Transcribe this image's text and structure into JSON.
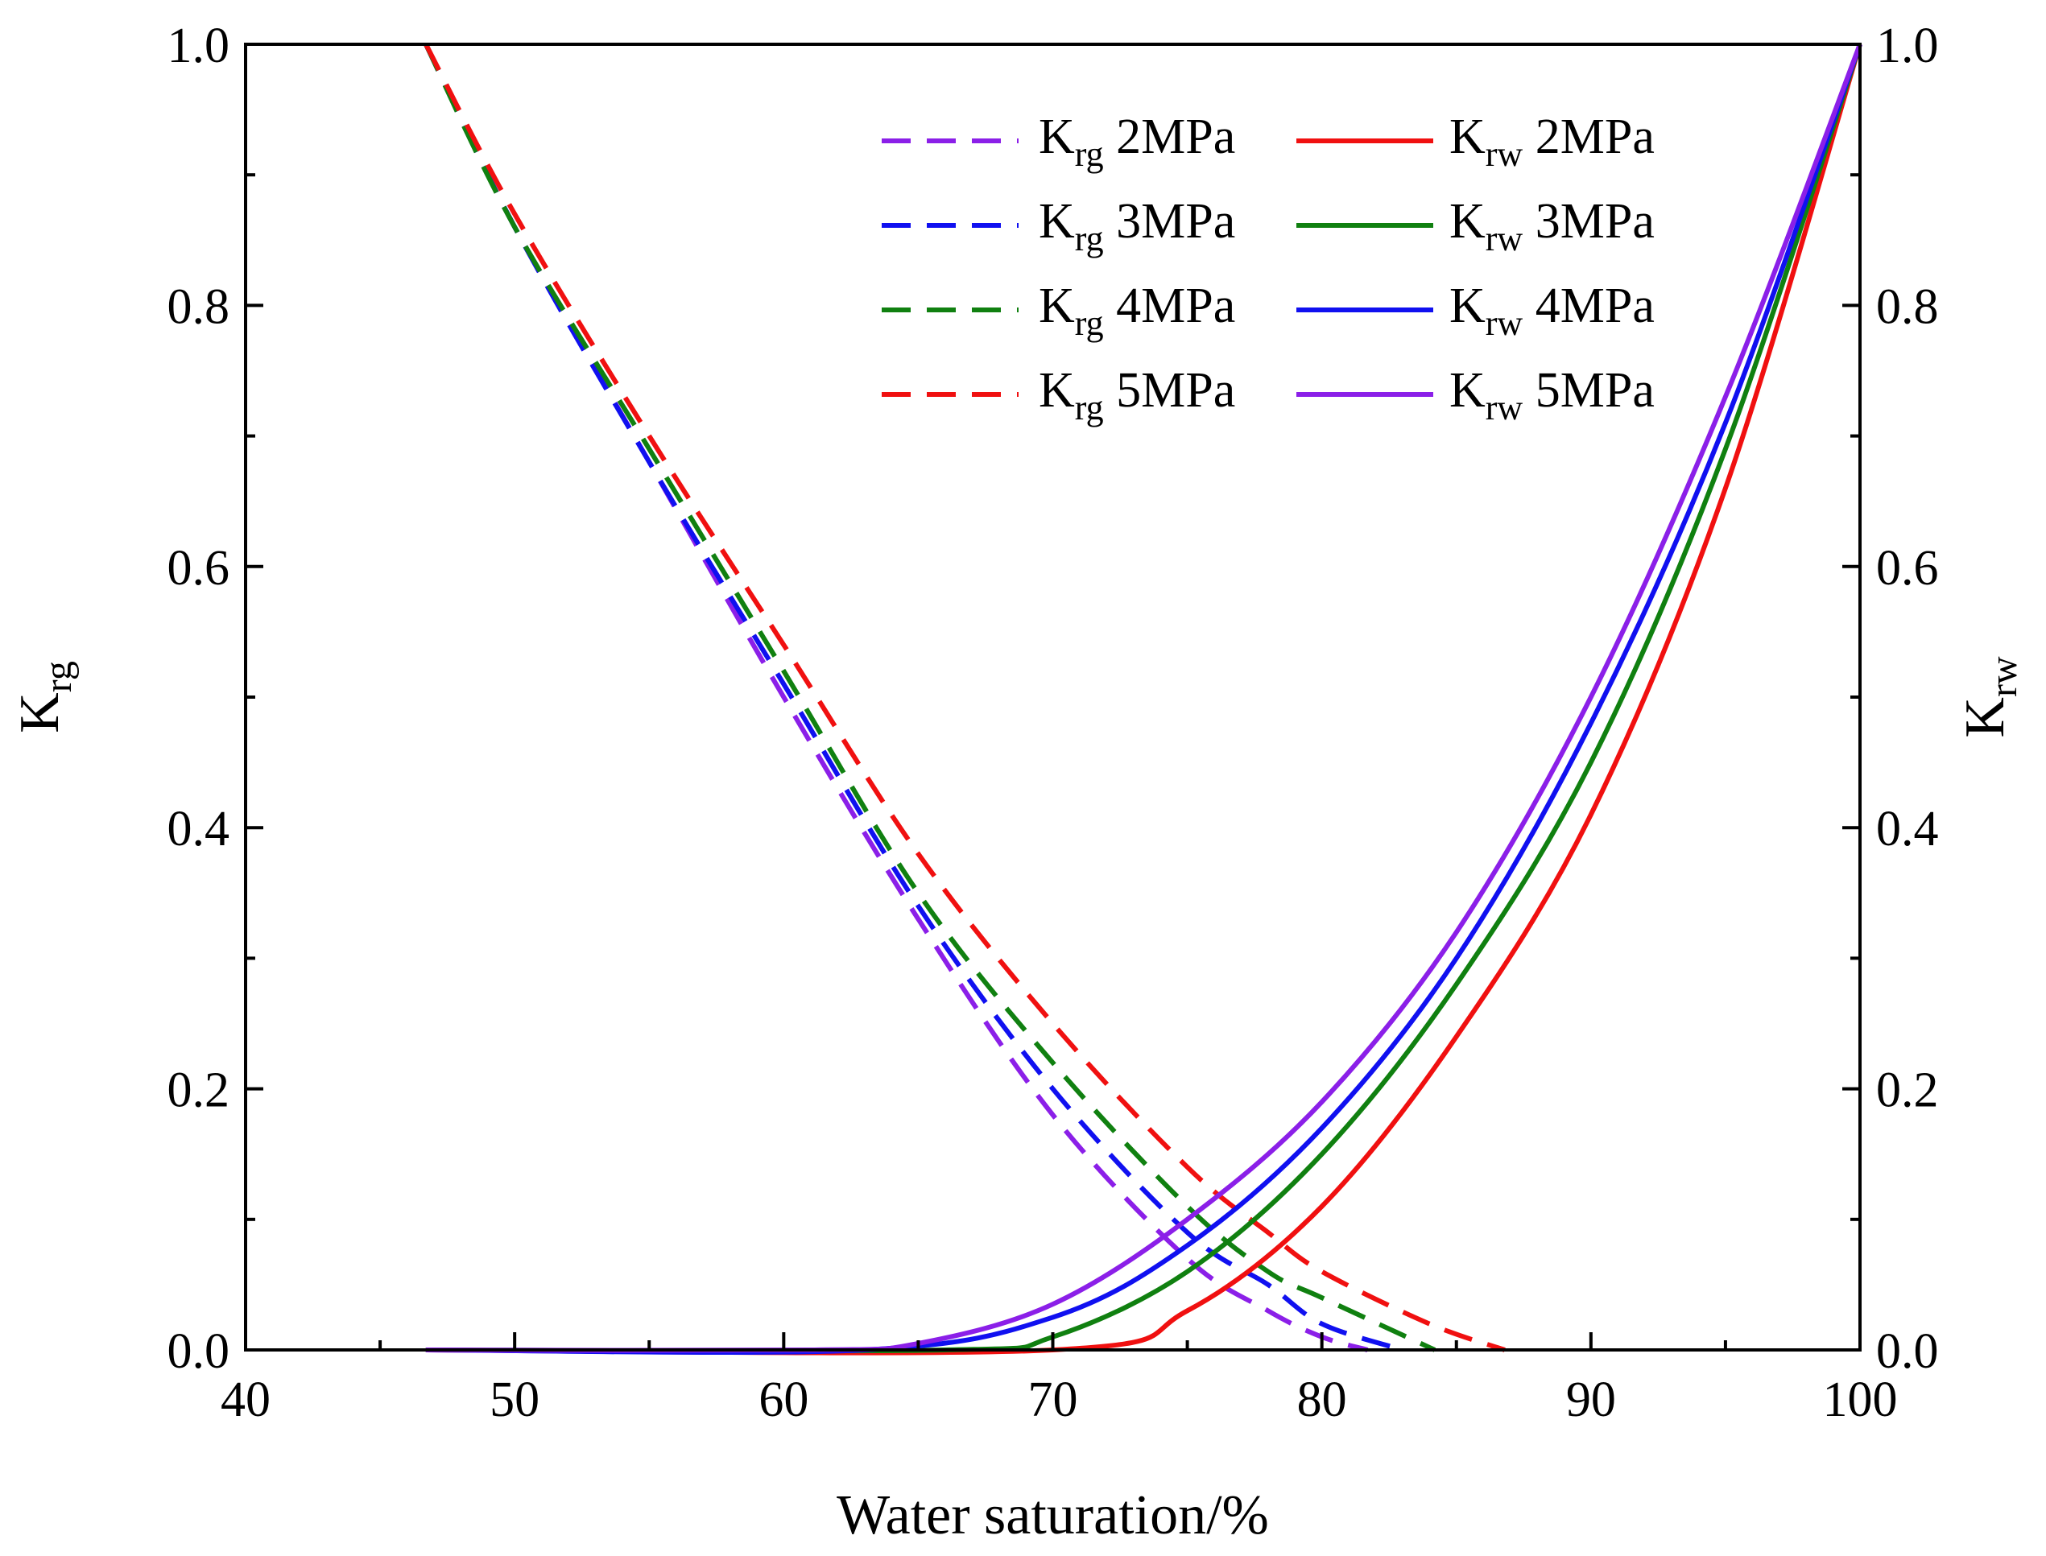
{
  "chart_data": {
    "type": "line",
    "xlabel": "Water saturation/%",
    "ylabel_left": {
      "main": "K",
      "sub": "rg"
    },
    "ylabel_right": {
      "main": "K",
      "sub": "rw"
    },
    "xlim": [
      40,
      100
    ],
    "ylim_left": [
      0.0,
      1.0
    ],
    "ylim_right": [
      0.0,
      1.0
    ],
    "x_ticks": [
      "40",
      "50",
      "60",
      "70",
      "80",
      "90",
      "100"
    ],
    "y_ticks_left": [
      "0.0",
      "0.2",
      "0.4",
      "0.6",
      "0.8",
      "1.0"
    ],
    "y_ticks_right": [
      "0.0",
      "0.2",
      "0.4",
      "0.6",
      "0.8",
      "1.0"
    ],
    "grid": false,
    "legend_position": "top-right",
    "series": [
      {
        "name_main": "K",
        "name_sub": "rg",
        "pressure": "2MPa",
        "axis": "left",
        "style": "dashed",
        "color": "#8B1FE8",
        "x": [
          46.7,
          50,
          55,
          60,
          65,
          70,
          75,
          78,
          80,
          81.7
        ],
        "y": [
          1.0,
          0.86,
          0.68,
          0.5,
          0.33,
          0.18,
          0.07,
          0.03,
          0.01,
          0.0
        ]
      },
      {
        "name_main": "K",
        "name_sub": "rg",
        "pressure": "3MPa",
        "axis": "left",
        "style": "dashed",
        "color": "#1010F0",
        "x": [
          46.7,
          50,
          55,
          60,
          65,
          70,
          75,
          78,
          80,
          83.0
        ],
        "y": [
          1.0,
          0.86,
          0.68,
          0.51,
          0.34,
          0.2,
          0.09,
          0.05,
          0.02,
          0.0
        ]
      },
      {
        "name_main": "K",
        "name_sub": "rg",
        "pressure": "4MPa",
        "axis": "left",
        "style": "dashed",
        "color": "#108010",
        "x": [
          46.7,
          50,
          55,
          60,
          65,
          70,
          75,
          78,
          80,
          84.2
        ],
        "y": [
          1.0,
          0.86,
          0.69,
          0.52,
          0.35,
          0.22,
          0.11,
          0.06,
          0.04,
          0.0
        ]
      },
      {
        "name_main": "K",
        "name_sub": "rg",
        "pressure": "5MPa",
        "axis": "left",
        "style": "dashed",
        "color": "#F01010",
        "x": [
          46.7,
          50,
          55,
          60,
          65,
          70,
          75,
          78,
          80,
          84,
          86.8
        ],
        "y": [
          1.0,
          0.87,
          0.7,
          0.54,
          0.38,
          0.25,
          0.14,
          0.09,
          0.06,
          0.02,
          0.0
        ]
      },
      {
        "name_main": "K",
        "name_sub": "rw",
        "pressure": "2MPa",
        "axis": "right",
        "style": "solid",
        "color": "#F01010",
        "x": [
          70,
          75,
          80,
          85,
          90,
          95,
          100
        ],
        "y": [
          0.0,
          0.03,
          0.11,
          0.24,
          0.41,
          0.66,
          1.0
        ]
      },
      {
        "name_main": "K",
        "name_sub": "rw",
        "pressure": "3MPa",
        "axis": "right",
        "style": "solid",
        "color": "#108010",
        "x": [
          66,
          70,
          75,
          80,
          85,
          90,
          95,
          100
        ],
        "y": [
          0.0,
          0.01,
          0.06,
          0.15,
          0.28,
          0.45,
          0.69,
          1.0
        ]
      },
      {
        "name_main": "K",
        "name_sub": "rw",
        "pressure": "4MPa",
        "axis": "right",
        "style": "solid",
        "color": "#1010F0",
        "x": [
          63,
          70,
          75,
          80,
          85,
          90,
          95,
          100
        ],
        "y": [
          0.0,
          0.025,
          0.08,
          0.17,
          0.3,
          0.48,
          0.71,
          1.0
        ]
      },
      {
        "name_main": "K",
        "name_sub": "rw",
        "pressure": "5MPa",
        "axis": "right",
        "style": "solid",
        "color": "#8B1FE8",
        "x": [
          61,
          65,
          70,
          75,
          80,
          85,
          90,
          95,
          100
        ],
        "y": [
          0.0,
          0.005,
          0.035,
          0.1,
          0.19,
          0.32,
          0.5,
          0.73,
          1.0
        ]
      }
    ]
  }
}
